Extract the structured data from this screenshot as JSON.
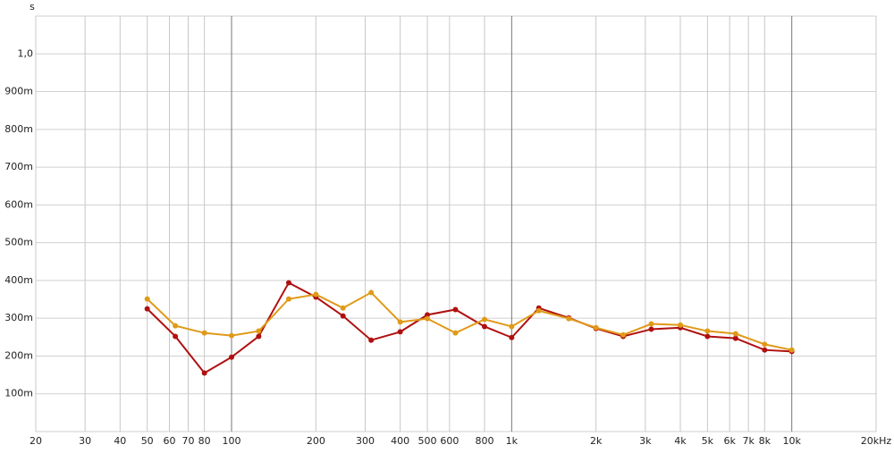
{
  "chart_data": {
    "type": "line",
    "y_label": "s",
    "log_x": true,
    "grid": true,
    "x": [
      50,
      63,
      80,
      100,
      125,
      160,
      200,
      250,
      315,
      400,
      500,
      630,
      800,
      1000,
      1250,
      1600,
      2000,
      2500,
      3150,
      4000,
      5000,
      6300,
      8000,
      10000
    ],
    "series": [
      {
        "color": "#b01010",
        "values": [
          0.325,
          0.252,
          0.155,
          0.197,
          0.252,
          0.394,
          0.356,
          0.306,
          0.242,
          0.264,
          0.309,
          0.323,
          0.278,
          0.249,
          0.327,
          0.301,
          0.273,
          0.252,
          0.271,
          0.275,
          0.252,
          0.247,
          0.216,
          0.212
        ]
      },
      {
        "color": "#e09a18",
        "values": [
          0.351,
          0.28,
          0.261,
          0.254,
          0.266,
          0.351,
          0.363,
          0.327,
          0.368,
          0.29,
          0.299,
          0.261,
          0.297,
          0.278,
          0.32,
          0.299,
          0.275,
          0.256,
          0.285,
          0.282,
          0.266,
          0.259,
          0.231,
          0.216
        ]
      }
    ],
    "xlim": [
      20,
      20000
    ],
    "xticks": [
      20,
      30,
      40,
      50,
      60,
      70,
      80,
      100,
      200,
      300,
      400,
      500,
      600,
      800,
      {
        "value": 1000,
        "label": "1k"
      },
      {
        "value": 2000,
        "label": "2k"
      },
      {
        "value": 3000,
        "label": "3k"
      },
      {
        "value": 4000,
        "label": "4k"
      },
      {
        "value": 5000,
        "label": "5k"
      },
      {
        "value": 6000,
        "label": "6k"
      },
      {
        "value": 7000,
        "label": "7k"
      },
      {
        "value": 8000,
        "label": "8k"
      },
      {
        "value": 10000,
        "label": "10k"
      },
      {
        "value": 20000,
        "label": "20kHz"
      }
    ],
    "ylim": [
      0,
      1.1
    ],
    "yticks": [
      {
        "value": 0.1,
        "label": "100m"
      },
      {
        "value": 0.2,
        "label": "200m"
      },
      {
        "value": 0.3,
        "label": "300m"
      },
      {
        "value": 0.4,
        "label": "400m"
      },
      {
        "value": 0.5,
        "label": "500m"
      },
      {
        "value": 0.6,
        "label": "600m"
      },
      {
        "value": 0.7,
        "label": "700m"
      },
      {
        "value": 0.8,
        "label": "800m"
      },
      {
        "value": 0.9,
        "label": "900m"
      },
      {
        "value": 1.0,
        "label": "1,0"
      }
    ]
  }
}
